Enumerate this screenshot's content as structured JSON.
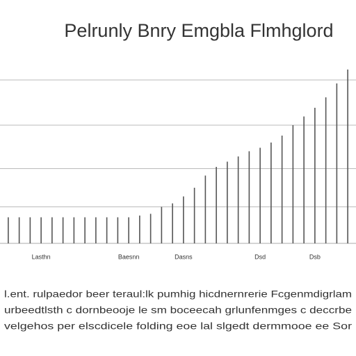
{
  "chart_data": {
    "type": "bar",
    "title": "Pelrunly Bnry Emgbla Flmhglord",
    "categories": [
      null,
      null,
      null,
      "Lasthn",
      null,
      null,
      null,
      null,
      null,
      null,
      null,
      "Baesnn",
      null,
      null,
      null,
      null,
      "Dasns",
      null,
      null,
      null,
      null,
      null,
      null,
      "Dsd",
      null,
      null,
      null,
      null,
      "Dsb",
      null,
      null,
      null
    ],
    "values": [
      15,
      15,
      15,
      15,
      15,
      15,
      15,
      15,
      15,
      15,
      15,
      15,
      16,
      17,
      21,
      23,
      27,
      32,
      39,
      44,
      47,
      50,
      53,
      55,
      58,
      62,
      68,
      73,
      78,
      84,
      92,
      100
    ],
    "color": "#555555",
    "ylim": [
      0,
      100
    ],
    "yticks": [
      21,
      43,
      68,
      94
    ],
    "grid": true,
    "annotations": [
      "l.ent. rulpaedor beer teraul:lk pumhig hicdnernrerie Fcgenmdigrlam",
      "urbeedtlsth c dornbeooje le sm boceecah grlunfenmges c deccrbe",
      "velgehos per elscdicele folding eoe lal slgedt dermmooe ee Sor"
    ]
  }
}
